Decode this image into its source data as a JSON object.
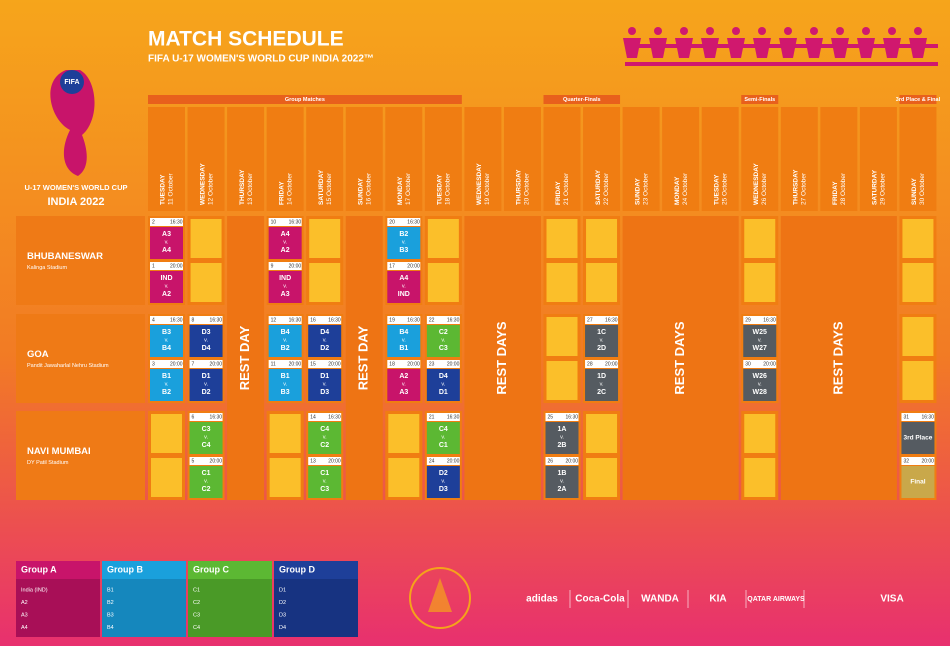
{
  "header": {
    "title": "MATCH SCHEDULE",
    "subtitle": "FIFA U-17 WOMEN'S WORLD CUP INDIA 2022™"
  },
  "logo": {
    "badge": "FIFA",
    "line1": "U-17 WOMEN'S WORLD CUP",
    "line2": "INDIA 2022"
  },
  "stages": [
    "Group Matches",
    "Quarter-Finals",
    "Semi-Finals",
    "3rd Place & Final"
  ],
  "days": [
    {
      "weekday": "TUESDAY",
      "date": "11 October"
    },
    {
      "weekday": "WEDNESDAY",
      "date": "12 October"
    },
    {
      "weekday": "THURSDAY",
      "date": "13 October"
    },
    {
      "weekday": "FRIDAY",
      "date": "14 October"
    },
    {
      "weekday": "SATURDAY",
      "date": "15 October"
    },
    {
      "weekday": "SUNDAY",
      "date": "16 October"
    },
    {
      "weekday": "MONDAY",
      "date": "17 October"
    },
    {
      "weekday": "TUESDAY",
      "date": "18 October"
    },
    {
      "weekday": "WEDNESDAY",
      "date": "19 October"
    },
    {
      "weekday": "THURSDAY",
      "date": "20 October"
    },
    {
      "weekday": "FRIDAY",
      "date": "21 October"
    },
    {
      "weekday": "SATURDAY",
      "date": "22 October"
    },
    {
      "weekday": "SUNDAY",
      "date": "23 October"
    },
    {
      "weekday": "MONDAY",
      "date": "24 October"
    },
    {
      "weekday": "TUESDAY",
      "date": "25 October"
    },
    {
      "weekday": "WEDNESDAY",
      "date": "26 October"
    },
    {
      "weekday": "THURSDAY",
      "date": "27 October"
    },
    {
      "weekday": "FRIDAY",
      "date": "28 October"
    },
    {
      "weekday": "SATURDAY",
      "date": "29 October"
    },
    {
      "weekday": "SUNDAY",
      "date": "30 October"
    }
  ],
  "versus": "v.",
  "rest": [
    "REST DAY",
    "REST DAY",
    "REST DAYS",
    "REST DAYS",
    "REST DAYS"
  ],
  "venues": [
    {
      "name": "BHUBANESWAR",
      "stadium": "Kalinga Stadium",
      "matches": [
        {
          "no": "2",
          "time": "16:30",
          "home": "A3",
          "away": "A4"
        },
        {
          "no": "1",
          "time": "20:00",
          "home": "IND",
          "away": "A2"
        },
        {
          "no": "10",
          "time": "16:30",
          "home": "A4",
          "away": "A2"
        },
        {
          "no": "9",
          "time": "20:00",
          "home": "IND",
          "away": "A3"
        },
        {
          "no": "20",
          "time": "16:30",
          "home": "B2",
          "away": "B3"
        },
        {
          "no": "17",
          "time": "20:00",
          "home": "A4",
          "away": "IND"
        }
      ]
    },
    {
      "name": "GOA",
      "stadium": "Pandit Jawaharlal Nehru Stadium",
      "matches": [
        {
          "no": "4",
          "time": "16:30",
          "home": "B3",
          "away": "B4"
        },
        {
          "no": "3",
          "time": "20:00",
          "home": "B1",
          "away": "B2"
        },
        {
          "no": "8",
          "time": "16:30",
          "home": "D3",
          "away": "D4"
        },
        {
          "no": "7",
          "time": "20:00",
          "home": "D1",
          "away": "D2"
        },
        {
          "no": "12",
          "time": "16:30",
          "home": "B4",
          "away": "B2"
        },
        {
          "no": "11",
          "time": "20:00",
          "home": "B1",
          "away": "B3"
        },
        {
          "no": "16",
          "time": "16:30",
          "home": "D4",
          "away": "D2"
        },
        {
          "no": "15",
          "time": "20:00",
          "home": "D1",
          "away": "D3"
        },
        {
          "no": "19",
          "time": "16:30",
          "home": "B4",
          "away": "B1"
        },
        {
          "no": "18",
          "time": "20:00",
          "home": "A2",
          "away": "A3"
        },
        {
          "no": "22",
          "time": "16:30",
          "home": "C2",
          "away": "C3"
        },
        {
          "no": "23",
          "time": "20:00",
          "home": "D4",
          "away": "D1"
        },
        {
          "no": "27",
          "time": "16:30",
          "home": "1C",
          "away": "2D"
        },
        {
          "no": "28",
          "time": "20:00",
          "home": "1D",
          "away": "2C"
        },
        {
          "no": "29",
          "time": "16:30",
          "home": "W25",
          "away": "W27"
        },
        {
          "no": "30",
          "time": "20:00",
          "home": "W26",
          "away": "W28"
        }
      ]
    },
    {
      "name": "NAVI MUMBAI",
      "stadium": "DY Patil Stadium",
      "matches": [
        {
          "no": "6",
          "time": "16:30",
          "home": "C3",
          "away": "C4"
        },
        {
          "no": "5",
          "time": "20:00",
          "home": "C1",
          "away": "C2"
        },
        {
          "no": "14",
          "time": "16:30",
          "home": "C4",
          "away": "C2"
        },
        {
          "no": "13",
          "time": "20:00",
          "home": "C1",
          "away": "C3"
        },
        {
          "no": "21",
          "time": "16:30",
          "home": "C4",
          "away": "C1"
        },
        {
          "no": "24",
          "time": "20:00",
          "home": "D2",
          "away": "D3"
        },
        {
          "no": "25",
          "time": "16:30",
          "home": "1A",
          "away": "2B"
        },
        {
          "no": "26",
          "time": "20:00",
          "home": "1B",
          "away": "2A"
        },
        {
          "no": "31",
          "time": "16:30",
          "label": "3rd Place"
        },
        {
          "no": "32",
          "time": "20:00",
          "label": "Final"
        }
      ]
    }
  ],
  "groups": [
    {
      "name": "Group A",
      "teams": [
        "India (IND)",
        "A2",
        "A3",
        "A4"
      ]
    },
    {
      "name": "Group B",
      "teams": [
        "B1",
        "B2",
        "B3",
        "B4"
      ]
    },
    {
      "name": "Group C",
      "teams": [
        "C1",
        "C2",
        "C3",
        "C4"
      ]
    },
    {
      "name": "Group D",
      "teams": [
        "D1",
        "D2",
        "D3",
        "D4"
      ]
    }
  ],
  "sponsors": [
    "adidas",
    "Coca-Cola",
    "WANDA",
    "KIA",
    "QATAR AIRWAYS",
    "VISA"
  ]
}
